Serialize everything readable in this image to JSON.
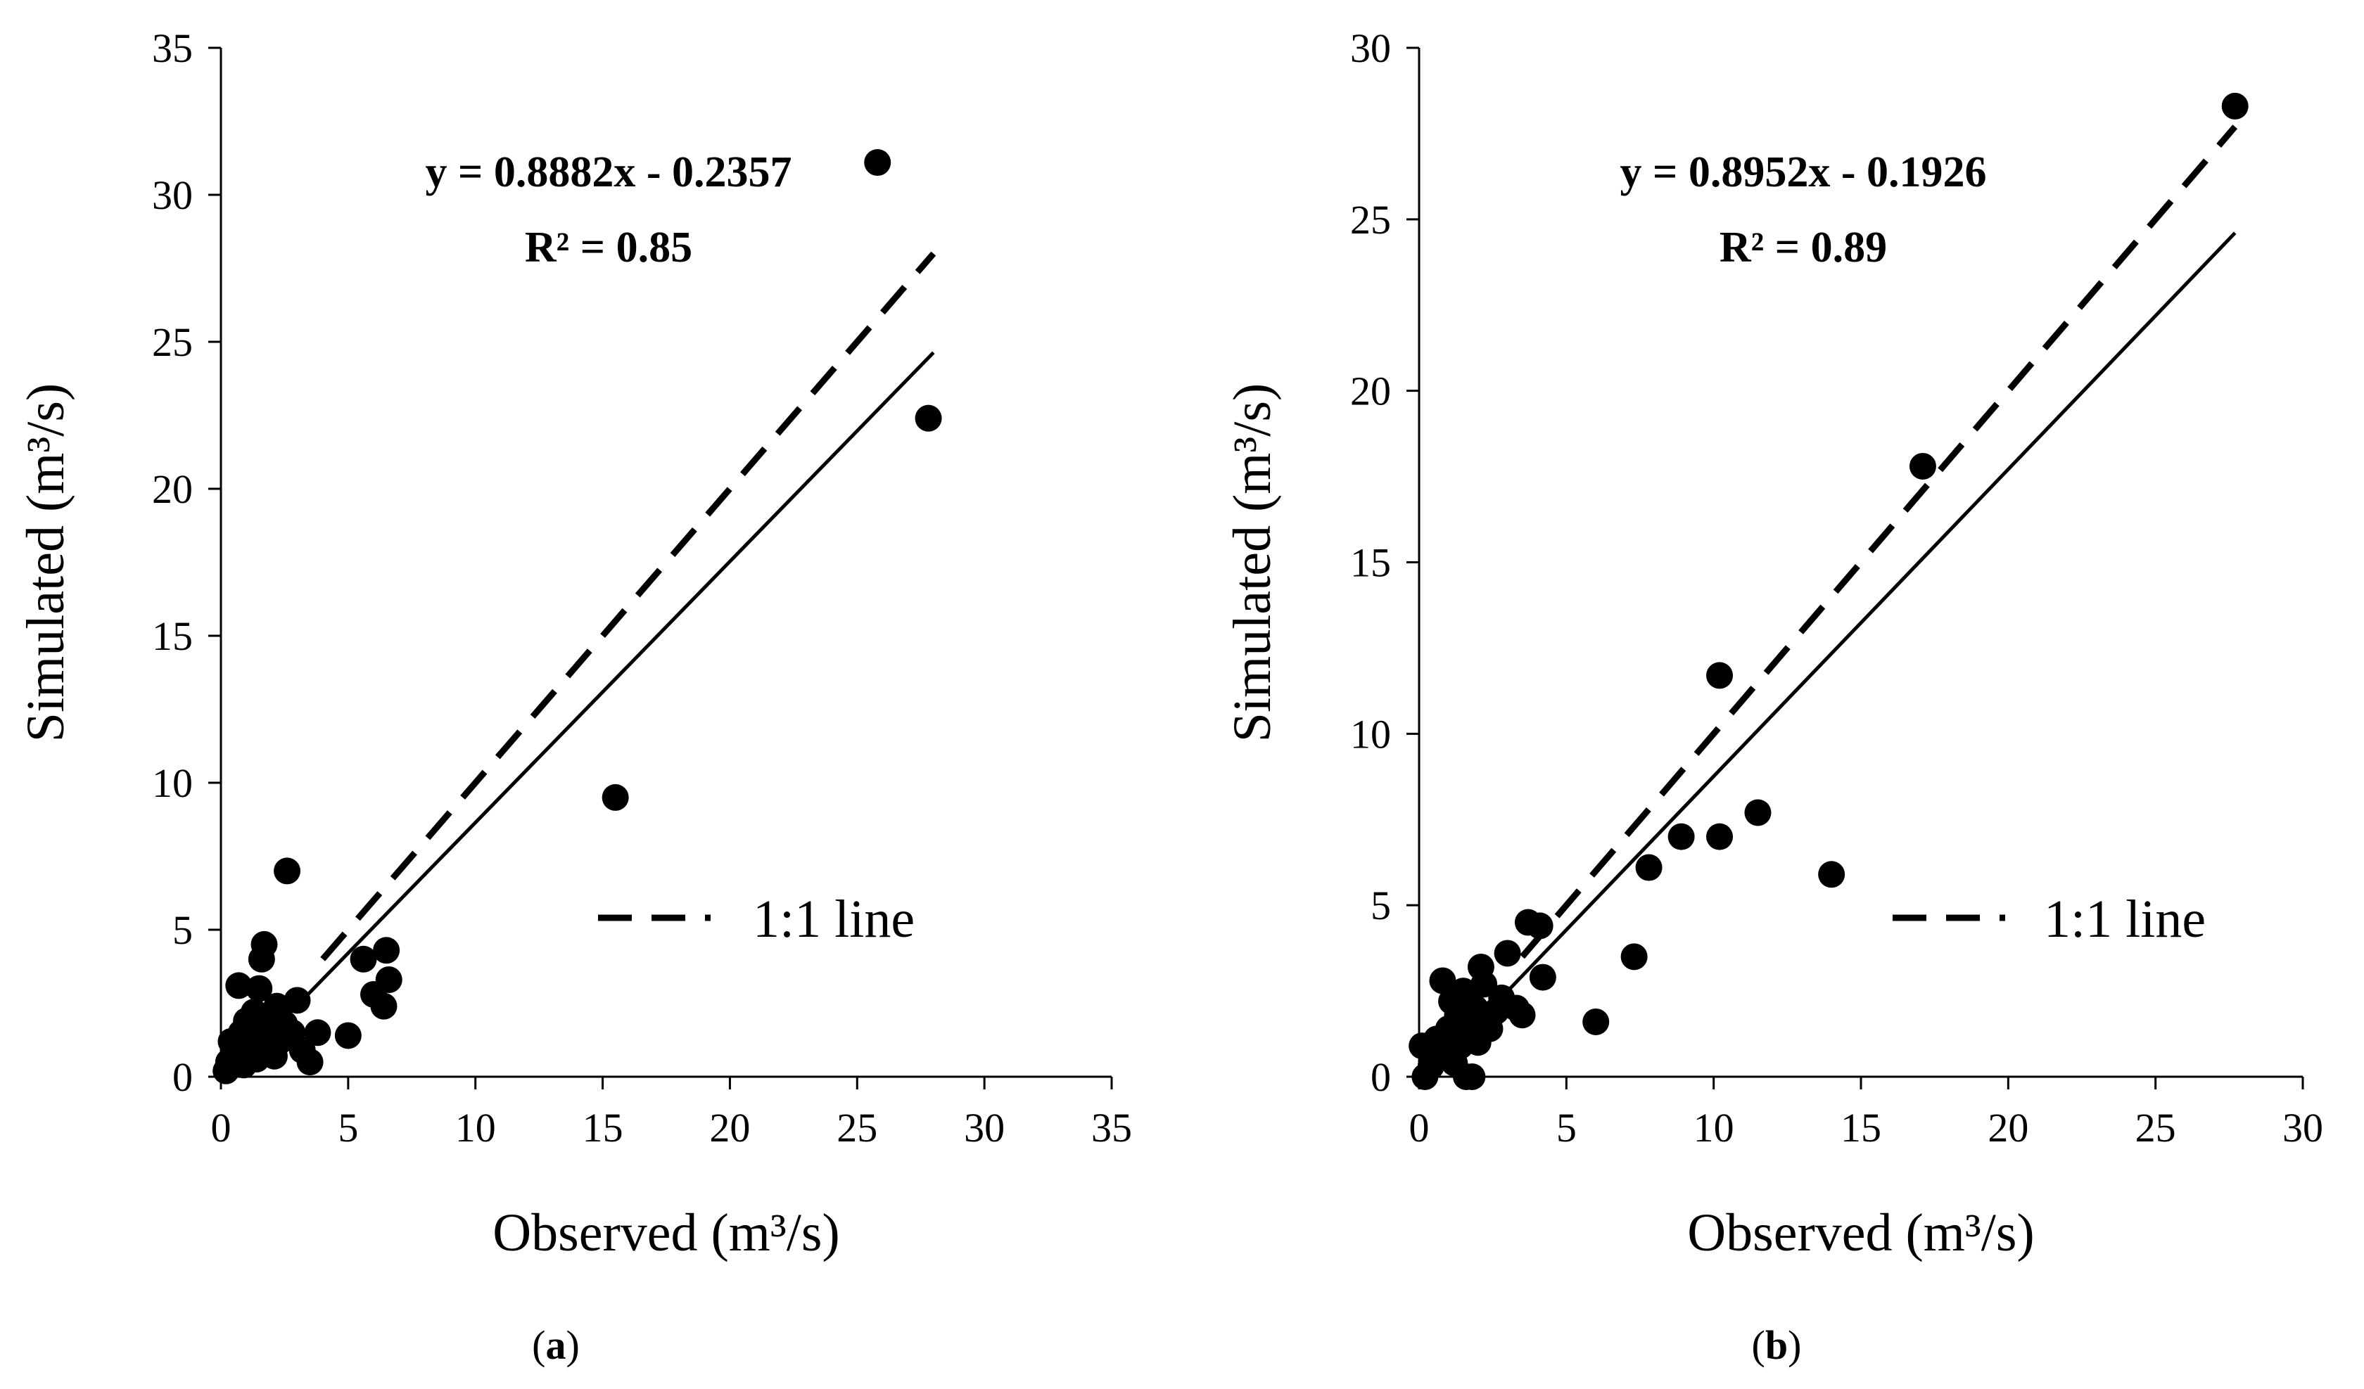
{
  "chart_data": [
    {
      "id": "a",
      "type": "scatter",
      "panel_label": "(a)",
      "xlabel": "Observed (m³/s)",
      "ylabel": "Simulated (m³/s)",
      "xlim": [
        0,
        35
      ],
      "ylim": [
        0,
        35
      ],
      "xticks": [
        0,
        5,
        10,
        15,
        20,
        25,
        30,
        35
      ],
      "yticks": [
        0,
        5,
        10,
        15,
        20,
        25,
        30,
        35
      ],
      "equation": "y = 0.8882x - 0.2357",
      "r2": "R² = 0.85",
      "legend_label": "1:1 line",
      "trendline": {
        "slope": 0.8882,
        "intercept": -0.2357,
        "x_range": [
          2.0,
          28.0
        ]
      },
      "identity_line": {
        "x_range": [
          4.0,
          28.0
        ]
      },
      "points": [
        [
          0.2,
          0.2
        ],
        [
          0.3,
          0.5
        ],
        [
          0.4,
          1.2
        ],
        [
          0.6,
          0.8
        ],
        [
          0.7,
          3.1
        ],
        [
          0.8,
          1.5
        ],
        [
          0.9,
          0.4
        ],
        [
          1.0,
          1.9
        ],
        [
          1.1,
          0.9
        ],
        [
          1.2,
          1.4
        ],
        [
          1.3,
          2.2
        ],
        [
          1.4,
          0.6
        ],
        [
          1.5,
          3.0
        ],
        [
          1.6,
          4.0
        ],
        [
          1.7,
          4.5
        ],
        [
          1.8,
          1.0
        ],
        [
          1.9,
          2.0
        ],
        [
          2.0,
          1.6
        ],
        [
          2.1,
          0.7
        ],
        [
          2.2,
          2.4
        ],
        [
          2.3,
          1.2
        ],
        [
          2.5,
          1.8
        ],
        [
          2.6,
          7.0
        ],
        [
          2.8,
          1.5
        ],
        [
          3.0,
          2.6
        ],
        [
          3.2,
          0.9
        ],
        [
          3.5,
          0.5
        ],
        [
          3.8,
          1.5
        ],
        [
          5.0,
          1.4
        ],
        [
          5.6,
          4.0
        ],
        [
          6.0,
          2.8
        ],
        [
          6.4,
          2.4
        ],
        [
          6.5,
          4.3
        ],
        [
          6.6,
          3.3
        ],
        [
          15.5,
          9.5
        ],
        [
          25.8,
          31.1
        ],
        [
          27.8,
          22.4
        ]
      ]
    },
    {
      "id": "b",
      "type": "scatter",
      "panel_label": "(b)",
      "xlabel": "Observed (m³/s)",
      "ylabel": "Simulated (m³/s)",
      "xlim": [
        0,
        30
      ],
      "ylim": [
        0,
        30
      ],
      "xticks": [
        0,
        5,
        10,
        15,
        20,
        25,
        30
      ],
      "yticks": [
        0,
        5,
        10,
        15,
        20,
        25,
        30
      ],
      "equation": "y = 0.8952x - 0.1926",
      "r2": "R² = 0.89",
      "legend_label": "1:1 line",
      "trendline": {
        "slope": 0.8952,
        "intercept": -0.1926,
        "x_range": [
          1.5,
          27.7
        ]
      },
      "identity_line": {
        "x_range": [
          3.5,
          27.7
        ]
      },
      "points": [
        [
          0.1,
          0.9
        ],
        [
          0.2,
          0.0
        ],
        [
          0.4,
          0.3
        ],
        [
          0.6,
          1.1
        ],
        [
          0.8,
          2.8
        ],
        [
          0.9,
          0.6
        ],
        [
          1.0,
          1.4
        ],
        [
          1.1,
          2.2
        ],
        [
          1.2,
          0.4
        ],
        [
          1.3,
          1.8
        ],
        [
          1.4,
          0.9
        ],
        [
          1.5,
          2.5
        ],
        [
          1.6,
          0.0
        ],
        [
          1.7,
          1.5
        ],
        [
          1.8,
          0.0
        ],
        [
          1.9,
          2.0
        ],
        [
          2.0,
          1.0
        ],
        [
          2.1,
          3.2
        ],
        [
          2.2,
          2.7
        ],
        [
          2.4,
          1.4
        ],
        [
          2.6,
          1.9
        ],
        [
          2.8,
          2.3
        ],
        [
          3.0,
          3.6
        ],
        [
          3.3,
          2.0
        ],
        [
          3.5,
          1.8
        ],
        [
          3.7,
          4.5
        ],
        [
          4.1,
          4.4
        ],
        [
          4.2,
          2.9
        ],
        [
          6.0,
          1.6
        ],
        [
          7.3,
          3.5
        ],
        [
          7.8,
          6.1
        ],
        [
          8.9,
          7.0
        ],
        [
          10.2,
          11.7
        ],
        [
          10.2,
          7.0
        ],
        [
          11.5,
          7.7
        ],
        [
          14.0,
          5.9
        ],
        [
          17.1,
          17.8
        ],
        [
          27.7,
          28.3
        ]
      ]
    }
  ]
}
